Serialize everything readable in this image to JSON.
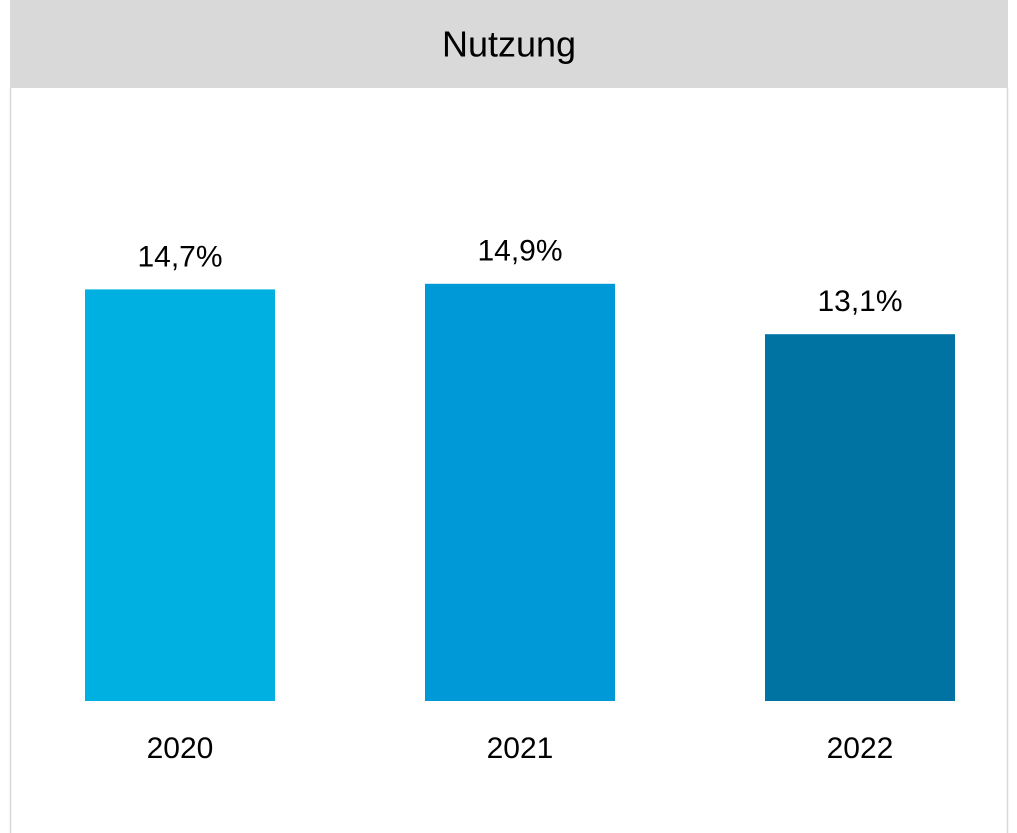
{
  "chart_data": {
    "type": "bar",
    "title": "Nutzung",
    "categories": [
      "2020",
      "2021",
      "2022"
    ],
    "values": [
      14.7,
      14.9,
      13.1
    ],
    "value_labels": [
      "14,7%",
      "14,9%",
      "13,1%"
    ],
    "colors": [
      "#00b0e0",
      "#0099d8",
      "#0073a3"
    ]
  }
}
